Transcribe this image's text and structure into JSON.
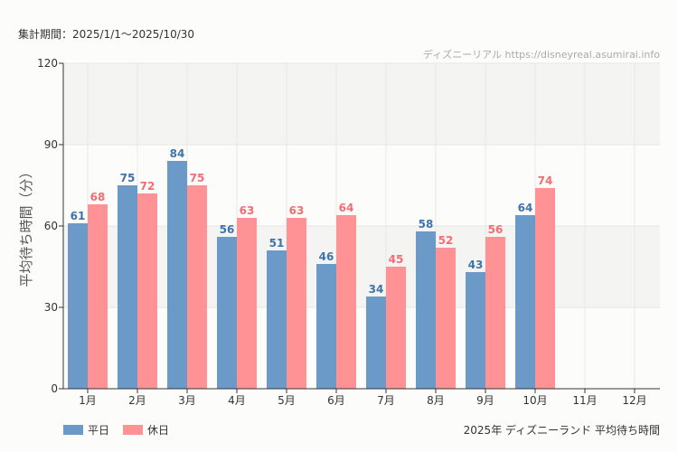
{
  "period": "集計期間：2025/1/1〜2025/10/30",
  "watermark": "ディズニーリアル https://disneyreal.asumirai.info",
  "footer_title": "2025年 ディズニーランド 平均待ち時間",
  "chart_data": {
    "type": "bar",
    "title": "",
    "xlabel": "",
    "ylabel": "平均待ち時間（分）",
    "ylim": [
      0,
      120
    ],
    "yticks": [
      0,
      30,
      60,
      90,
      120
    ],
    "grid": true,
    "legend_position": "bottom-left",
    "categories": [
      "1月",
      "2月",
      "3月",
      "4月",
      "5月",
      "6月",
      "7月",
      "8月",
      "9月",
      "10月",
      "11月",
      "12月"
    ],
    "series": [
      {
        "name": "平日",
        "color": "#6b9ac8",
        "label_color": "#3f74aa",
        "values": [
          61,
          75,
          84,
          56,
          51,
          46,
          34,
          58,
          43,
          64,
          null,
          null
        ]
      },
      {
        "name": "休日",
        "color": "#ff9294",
        "label_color": "#f36d72",
        "values": [
          68,
          72,
          75,
          63,
          63,
          64,
          45,
          52,
          56,
          74,
          null,
          null
        ]
      }
    ]
  }
}
